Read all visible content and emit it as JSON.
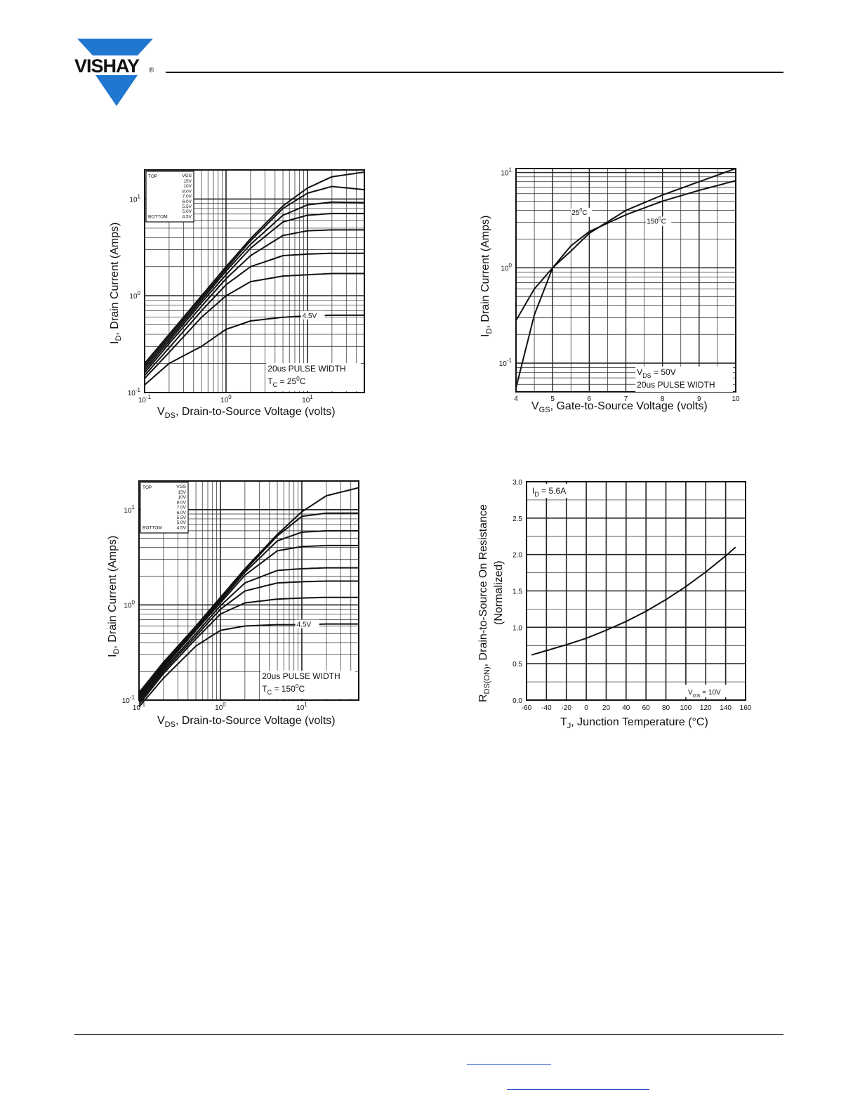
{
  "header": {
    "logo_text": "VISHAY",
    "logo_mark": "®"
  },
  "charts": [
    {
      "id": "c1",
      "ylabel_main": "I",
      "ylabel_sub": "D",
      "ylabel_rest": ", Drain Current (Amps)",
      "xlabel_main": "V",
      "xlabel_sub": "DS",
      "xlabel_rest": ", Drain-to-Source Voltage (volts)",
      "legend": {
        "top": "TOP",
        "bottom": "BOTTOM",
        "header": "VGS",
        "values": [
          "15V",
          "10V",
          "8.0V",
          "7.0V",
          "6.0V",
          "5.5V",
          "5.0V",
          "4.5V"
        ]
      },
      "curve_label": "4.5V",
      "note1": "20us PULSE WIDTH",
      "note2_main": "T",
      "note2_sub": "C",
      "note2_rest": " = 25",
      "note2_sup": "0",
      "note2_end": "C",
      "xticks": [
        {
          "base": "10",
          "exp": "-1",
          "v": 0.1
        },
        {
          "base": "10",
          "exp": "0",
          "v": 1
        },
        {
          "base": "10",
          "exp": "1",
          "v": 10
        }
      ],
      "yticks": [
        {
          "base": "10",
          "exp": "-1",
          "v": 0.1
        },
        {
          "base": "10",
          "exp": "0",
          "v": 1
        },
        {
          "base": "10",
          "exp": "1",
          "v": 10
        }
      ]
    },
    {
      "id": "c2",
      "ylabel_main": "I",
      "ylabel_sub": "D",
      "ylabel_rest": ", Drain Current (Amps)",
      "xlabel_main": "V",
      "xlabel_sub": "GS",
      "xlabel_rest": ", Gate-to-Source Voltage (volts)",
      "label_25": "25",
      "label_25_sup": "0",
      "label_25_end": "C",
      "label_150": "150",
      "label_150_sup": "0",
      "label_150_end": "C",
      "note1_main": "V",
      "note1_sub": "DS",
      "note1_rest": " = 50V",
      "note2": "20us PULSE WIDTH",
      "xticks": [
        "4",
        "5",
        "6",
        "7",
        "8",
        "9",
        "10"
      ],
      "yticks": [
        {
          "base": "10",
          "exp": "-1",
          "v": 0.1
        },
        {
          "base": "10",
          "exp": "0",
          "v": 1
        },
        {
          "base": "10",
          "exp": "1",
          "v": 10
        }
      ]
    },
    {
      "id": "c3",
      "ylabel_main": "I",
      "ylabel_sub": "D",
      "ylabel_rest": ", Drain Current (Amps)",
      "xlabel_main": "V",
      "xlabel_sub": "DS",
      "xlabel_rest": ", Drain-to-Source Voltage (volts)",
      "legend": {
        "top": "TOP",
        "bottom": "BOTTOM",
        "header": "VGS",
        "values": [
          "15V",
          "10V",
          "8.0V",
          "7.0V",
          "6.0V",
          "5.5V",
          "5.0V",
          "4.5V"
        ]
      },
      "curve_label": "4.5V",
      "note1": "20us PULSE WIDTH",
      "note2_main": "T",
      "note2_sub": "C",
      "note2_rest": " = 150",
      "note2_sup": "0",
      "note2_end": "C",
      "xticks": [
        {
          "base": "10",
          "exp": "-1",
          "v": 0.1
        },
        {
          "base": "10",
          "exp": "0",
          "v": 1
        },
        {
          "base": "10",
          "exp": "1",
          "v": 10
        }
      ],
      "yticks": [
        {
          "base": "10",
          "exp": "-1",
          "v": 0.1
        },
        {
          "base": "10",
          "exp": "0",
          "v": 1
        },
        {
          "base": "10",
          "exp": "1",
          "v": 10
        }
      ]
    },
    {
      "id": "c4",
      "ylabel_main": "R",
      "ylabel_sub": "DS(ON)",
      "ylabel_rest": ", Drain-to-Source On Resistance",
      "ylabel2": "(Normalized)",
      "xlabel_main": "T",
      "xlabel_sub": "J",
      "xlabel_rest": ", Junction Temperature (°C)",
      "note1_main": "I",
      "note1_sub": "D",
      "note1_rest": " = 5.6A",
      "note2_main": "V",
      "note2_sub": "GS",
      "note2_rest": " = 10V",
      "xticks": [
        "-60",
        "-40",
        "-20",
        "0",
        "20",
        "40",
        "60",
        "80",
        "100",
        "120",
        "140",
        "160"
      ],
      "yticks": [
        "0.0",
        "0.5",
        "1.0",
        "1.5",
        "2.0",
        "2.5",
        "3.0"
      ]
    }
  ],
  "chart_data": [
    {
      "type": "line",
      "xscale": "log",
      "yscale": "log",
      "xlim": [
        0.1,
        50
      ],
      "ylim": [
        0.1,
        20
      ],
      "series": [
        {
          "name": "15V",
          "x": [
            0.1,
            0.2,
            0.5,
            1,
            2,
            5,
            10,
            20,
            50
          ],
          "y": [
            0.2,
            0.4,
            1,
            2,
            3.9,
            8.5,
            13,
            17,
            19
          ]
        },
        {
          "name": "10V",
          "x": [
            0.1,
            0.2,
            0.5,
            1,
            2,
            5,
            10,
            20,
            50
          ],
          "y": [
            0.19,
            0.38,
            0.95,
            1.9,
            3.7,
            8,
            11.5,
            13.5,
            12.5
          ]
        },
        {
          "name": "8.0V",
          "x": [
            0.1,
            0.2,
            0.5,
            1,
            2,
            5,
            10,
            20,
            50
          ],
          "y": [
            0.18,
            0.36,
            0.9,
            1.8,
            3.4,
            6.8,
            8.7,
            9.3,
            9.2
          ]
        },
        {
          "name": "7.0V",
          "x": [
            0.1,
            0.2,
            0.5,
            1,
            2,
            5,
            10,
            20,
            50
          ],
          "y": [
            0.17,
            0.34,
            0.85,
            1.65,
            3.1,
            5.8,
            6.8,
            7.1,
            7.1
          ]
        },
        {
          "name": "6.0V",
          "x": [
            0.1,
            0.2,
            0.5,
            1,
            2,
            5,
            10,
            20,
            50
          ],
          "y": [
            0.16,
            0.32,
            0.78,
            1.5,
            2.6,
            4.2,
            4.7,
            4.8,
            4.8
          ]
        },
        {
          "name": "5.5V",
          "x": [
            0.1,
            0.2,
            0.5,
            1,
            2,
            5,
            10,
            20,
            50
          ],
          "y": [
            0.15,
            0.29,
            0.7,
            1.3,
            2.0,
            2.6,
            2.7,
            2.75,
            2.75
          ]
        },
        {
          "name": "5.0V",
          "x": [
            0.1,
            0.2,
            0.5,
            1,
            2,
            5,
            10,
            20,
            50
          ],
          "y": [
            0.14,
            0.26,
            0.6,
            1.0,
            1.4,
            1.6,
            1.65,
            1.7,
            1.7
          ]
        },
        {
          "name": "4.5V",
          "x": [
            0.1,
            0.2,
            0.5,
            1,
            2,
            5,
            10,
            20,
            50
          ],
          "y": [
            0.12,
            0.2,
            0.3,
            0.45,
            0.55,
            0.6,
            0.62,
            0.63,
            0.63
          ]
        }
      ]
    },
    {
      "type": "line",
      "yscale": "log",
      "xlim": [
        4,
        10
      ],
      "ylim": [
        0.05,
        11
      ],
      "series": [
        {
          "name": "25°C",
          "x": [
            4,
            4.5,
            5,
            5.5,
            6,
            7,
            8,
            9,
            10
          ],
          "y": [
            0.28,
            0.6,
            1.0,
            1.5,
            2.3,
            4.0,
            5.8,
            8.0,
            11
          ]
        },
        {
          "name": "150°C",
          "x": [
            4,
            4.5,
            5,
            5.5,
            6,
            7,
            8,
            9,
            10
          ],
          "y": [
            0.055,
            0.32,
            1.0,
            1.7,
            2.4,
            3.6,
            5.0,
            6.5,
            8.2
          ]
        }
      ]
    },
    {
      "type": "line",
      "xscale": "log",
      "yscale": "log",
      "xlim": [
        0.1,
        50
      ],
      "ylim": [
        0.1,
        20
      ],
      "series": [
        {
          "name": "15V",
          "x": [
            0.1,
            0.2,
            0.5,
            1,
            2,
            5,
            10,
            20,
            50
          ],
          "y": [
            0.12,
            0.25,
            0.6,
            1.2,
            2.4,
            5.5,
            9.5,
            14,
            17
          ]
        },
        {
          "name": "10V",
          "x": [
            0.1,
            0.2,
            0.5,
            1,
            2,
            5,
            10,
            20,
            50
          ],
          "y": [
            0.115,
            0.24,
            0.58,
            1.15,
            2.3,
            5.3,
            8.5,
            9.2,
            9.2
          ]
        },
        {
          "name": "8.0V",
          "x": [
            0.1,
            0.2,
            0.5,
            1,
            2,
            5,
            10,
            20,
            50
          ],
          "y": [
            0.11,
            0.23,
            0.56,
            1.1,
            2.2,
            4.7,
            5.8,
            6.0,
            6.0
          ]
        },
        {
          "name": "7.0V",
          "x": [
            0.1,
            0.2,
            0.5,
            1,
            2,
            5,
            10,
            20,
            50
          ],
          "y": [
            0.105,
            0.22,
            0.54,
            1.05,
            2.05,
            3.7,
            4.1,
            4.2,
            4.2
          ]
        },
        {
          "name": "6.0V",
          "x": [
            0.1,
            0.2,
            0.5,
            1,
            2,
            5,
            10,
            20,
            50
          ],
          "y": [
            0.1,
            0.21,
            0.5,
            0.98,
            1.7,
            2.3,
            2.4,
            2.45,
            2.45
          ]
        },
        {
          "name": "5.5V",
          "x": [
            0.1,
            0.2,
            0.5,
            1,
            2,
            5,
            10,
            20,
            50
          ],
          "y": [
            0.095,
            0.2,
            0.47,
            0.9,
            1.4,
            1.7,
            1.75,
            1.78,
            1.78
          ]
        },
        {
          "name": "5.0V",
          "x": [
            0.1,
            0.2,
            0.5,
            1,
            2,
            5,
            10,
            20,
            50
          ],
          "y": [
            0.09,
            0.19,
            0.44,
            0.8,
            1.05,
            1.15,
            1.18,
            1.2,
            1.2
          ]
        },
        {
          "name": "4.5V",
          "x": [
            0.1,
            0.2,
            0.5,
            1,
            2,
            5,
            10,
            20,
            50
          ],
          "y": [
            0.085,
            0.17,
            0.37,
            0.54,
            0.6,
            0.62,
            0.62,
            0.63,
            0.63
          ]
        }
      ]
    },
    {
      "type": "line",
      "xlim": [
        -60,
        160
      ],
      "ylim": [
        0,
        3
      ],
      "series": [
        {
          "x": [
            -55,
            -40,
            -20,
            0,
            20,
            40,
            60,
            80,
            100,
            120,
            140,
            150
          ],
          "y": [
            0.62,
            0.68,
            0.76,
            0.85,
            0.96,
            1.08,
            1.22,
            1.38,
            1.56,
            1.76,
            1.98,
            2.1
          ]
        }
      ]
    }
  ]
}
